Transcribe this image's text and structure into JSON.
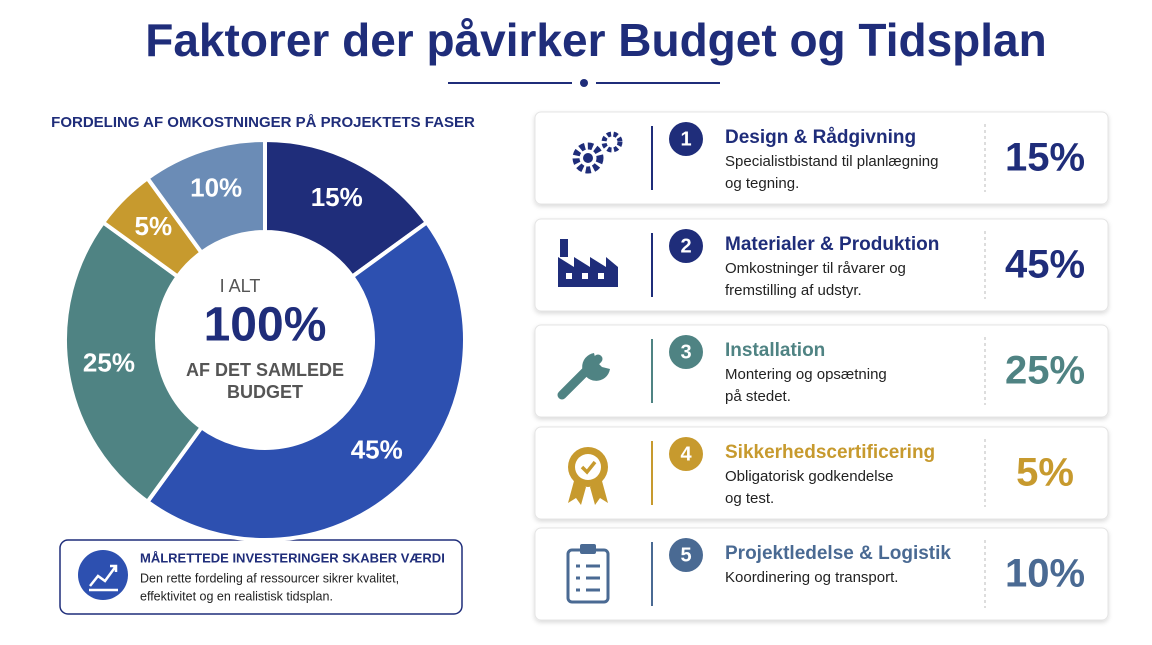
{
  "title": "Faktorer der påvirker Budget og Tidsplan",
  "chart_data": {
    "type": "pie",
    "title": "FORDELING AF OMKOSTNINGER PÅ PROJEKTETS FASER",
    "categories": [
      "Design & Rådgivning",
      "Materialer & Produktion",
      "Installation",
      "Sikkerhedscertificering",
      "Projektledelse & Logistik"
    ],
    "values": [
      15,
      45,
      25,
      5,
      10
    ],
    "value_labels": [
      "15%",
      "45%",
      "25%",
      "5%",
      "10%"
    ],
    "colors": [
      "#1f2d7a",
      "#2d50b0",
      "#4f8383",
      "#c79a2e",
      "#6b8cb6"
    ],
    "center": {
      "top": "I ALT",
      "value": "100%",
      "bottom": [
        "AF DET SAMLEDE",
        "BUDGET"
      ]
    }
  },
  "callout": {
    "title": "MÅLRETTEDE INVESTERINGER SKABER VÆRDI",
    "text": [
      "Den rette fordeling af ressourcer sikrer kvalitet,",
      "effektivitet og en realistisk tidsplan."
    ]
  },
  "cards": [
    {
      "number": "1",
      "description": [
        "Specialistbistand til planlægning",
        "og tegning."
      ]
    },
    {
      "number": "2",
      "description": [
        "Omkostninger til råvarer og",
        "fremstilling af udstyr."
      ]
    },
    {
      "number": "3",
      "description": [
        "Montering og opsætning",
        "på stedet."
      ]
    },
    {
      "number": "4",
      "description": [
        "Obligatorisk godkendelse",
        "og test."
      ]
    },
    {
      "number": "5",
      "description": [
        "Koordinering og transport."
      ]
    }
  ]
}
